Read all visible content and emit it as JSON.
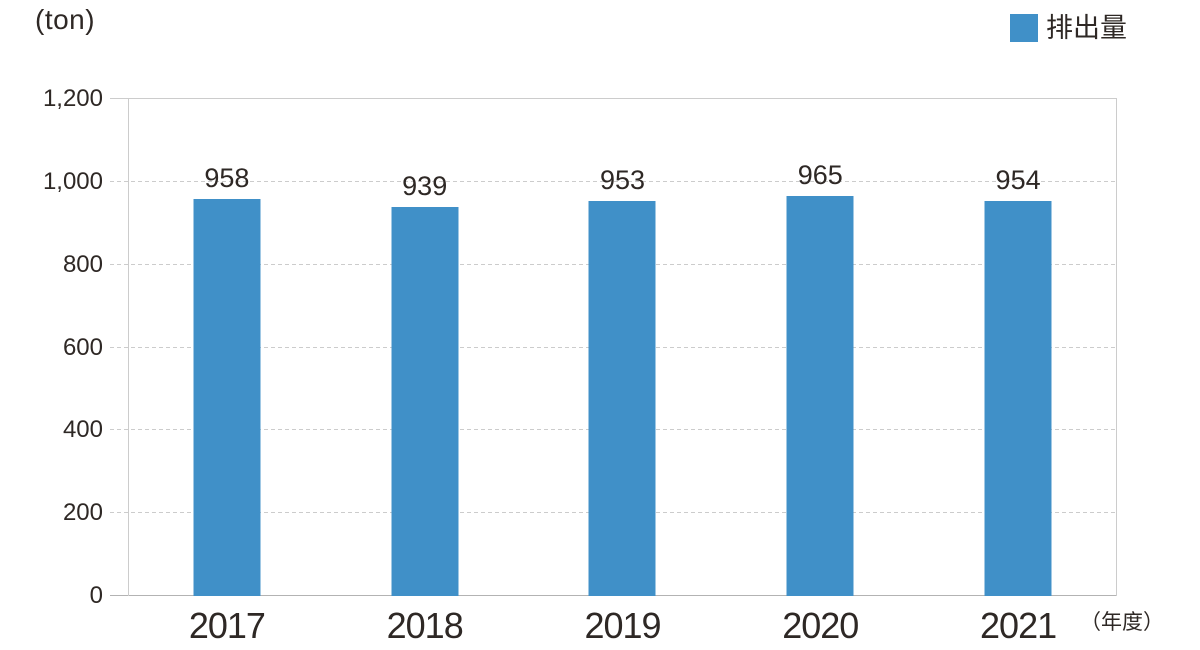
{
  "chart_data": {
    "type": "bar",
    "title": "",
    "unit_label": "(ton)",
    "x_axis_unit_label": "（年度）",
    "legend_label": "排出量",
    "legend_position": "top-right",
    "categories": [
      "2017",
      "2018",
      "2019",
      "2020",
      "2021"
    ],
    "series": [
      {
        "name": "排出量",
        "values": [
          958,
          939,
          953,
          965,
          954
        ]
      }
    ],
    "ylim": [
      0,
      1200
    ],
    "yticks": [
      {
        "value": 0,
        "label": "0"
      },
      {
        "value": 200,
        "label": "200"
      },
      {
        "value": 400,
        "label": "400"
      },
      {
        "value": 600,
        "label": "600"
      },
      {
        "value": 800,
        "label": "800"
      },
      {
        "value": 1000,
        "label": "1,000"
      },
      {
        "value": 1200,
        "label": "1,200"
      }
    ],
    "grid": "horizontal-dashed",
    "colors": {
      "bar": "#4090c8",
      "grid_line": "#cccccc",
      "axis_line": "#cccccc",
      "baseline": "#b3b3b3",
      "text": "#2e2825",
      "background": "#ffffff"
    }
  }
}
